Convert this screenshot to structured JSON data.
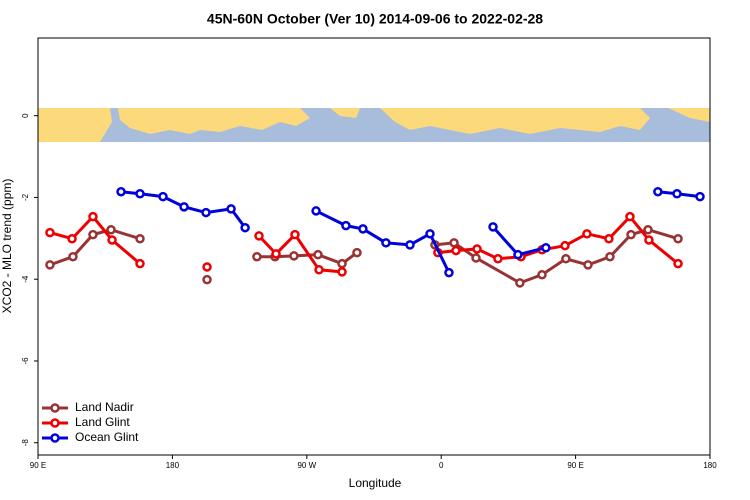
{
  "chart_data": {
    "type": "line",
    "title": "45N-60N October (Ver 10)   2014-09-06 to 2022-02-28",
    "x_label": "Longitude",
    "y_label": "XCO2 - MLO trend (ppm)",
    "xlim": [
      90,
      540
    ],
    "xticks": [
      {
        "value": 90,
        "label": "90 E"
      },
      {
        "value": 180,
        "label": "180"
      },
      {
        "value": 270,
        "label": "90 W"
      },
      {
        "value": 360,
        "label": "0"
      },
      {
        "value": 450,
        "label": "90 E"
      },
      {
        "value": 540,
        "label": "180"
      }
    ],
    "ylim": [
      -8.3,
      1.9
    ],
    "yticks": [
      0,
      -2,
      -4,
      -6,
      -8
    ],
    "legend": "bottom-left",
    "series": [
      {
        "name": "Land Nadir",
        "color": "#993333",
        "x": [
          98.0,
          113.4,
          126.8,
          138.9,
          158.3,
          null,
          203.2,
          null,
          236.6,
          248.7,
          261.4,
          277.5,
          293.6,
          303.6,
          null,
          355.8,
          368.6,
          383.3,
          412.7,
          427.5,
          443.5,
          458.3,
          473.0,
          487.1,
          498.5,
          518.6
        ],
        "values": [
          -3.65,
          -3.45,
          -2.91,
          -2.79,
          -3.01,
          null,
          -4.01,
          null,
          -3.45,
          -3.45,
          -3.43,
          -3.4,
          -3.62,
          -3.35,
          null,
          -3.16,
          -3.11,
          -3.48,
          -4.09,
          -3.89,
          -3.5,
          -3.65,
          -3.45,
          -2.91,
          -2.79,
          -3.01
        ]
      },
      {
        "name": "Land Glint",
        "color": "#ee0000",
        "x": [
          98.0,
          112.8,
          126.8,
          139.6,
          158.3,
          null,
          203.2,
          null,
          238.0,
          249.4,
          262.1,
          278.2,
          293.6,
          null,
          357.8,
          369.9,
          384.0,
          398.0,
          413.4,
          427.5,
          442.9,
          457.6,
          472.3,
          486.4,
          499.1,
          518.6
        ],
        "values": [
          -2.86,
          -3.01,
          -2.47,
          -3.04,
          -3.62,
          null,
          -3.7,
          null,
          -2.94,
          -3.38,
          -2.91,
          -3.77,
          -3.82,
          null,
          -3.35,
          -3.3,
          -3.26,
          -3.5,
          -3.45,
          -3.28,
          -3.18,
          -2.89,
          -3.01,
          -2.47,
          -3.04,
          -3.62
        ]
      },
      {
        "name": "Ocean Glint",
        "color": "#0000dd",
        "x": [
          145.6,
          158.3,
          173.7,
          187.8,
          202.5,
          219.3,
          228.7,
          null,
          276.2,
          296.2,
          307.6,
          323.0,
          339.1,
          352.5,
          365.2,
          null,
          394.7,
          411.4,
          430.1,
          null,
          505.1,
          517.9,
          533.3
        ],
        "values": [
          -1.86,
          -1.91,
          -1.98,
          -2.23,
          -2.37,
          -2.28,
          -2.74,
          null,
          -2.33,
          -2.69,
          -2.77,
          -3.11,
          -3.16,
          -2.89,
          -3.84,
          null,
          -2.72,
          -3.4,
          -3.23,
          null,
          -1.86,
          -1.91,
          -1.98
        ]
      }
    ]
  }
}
